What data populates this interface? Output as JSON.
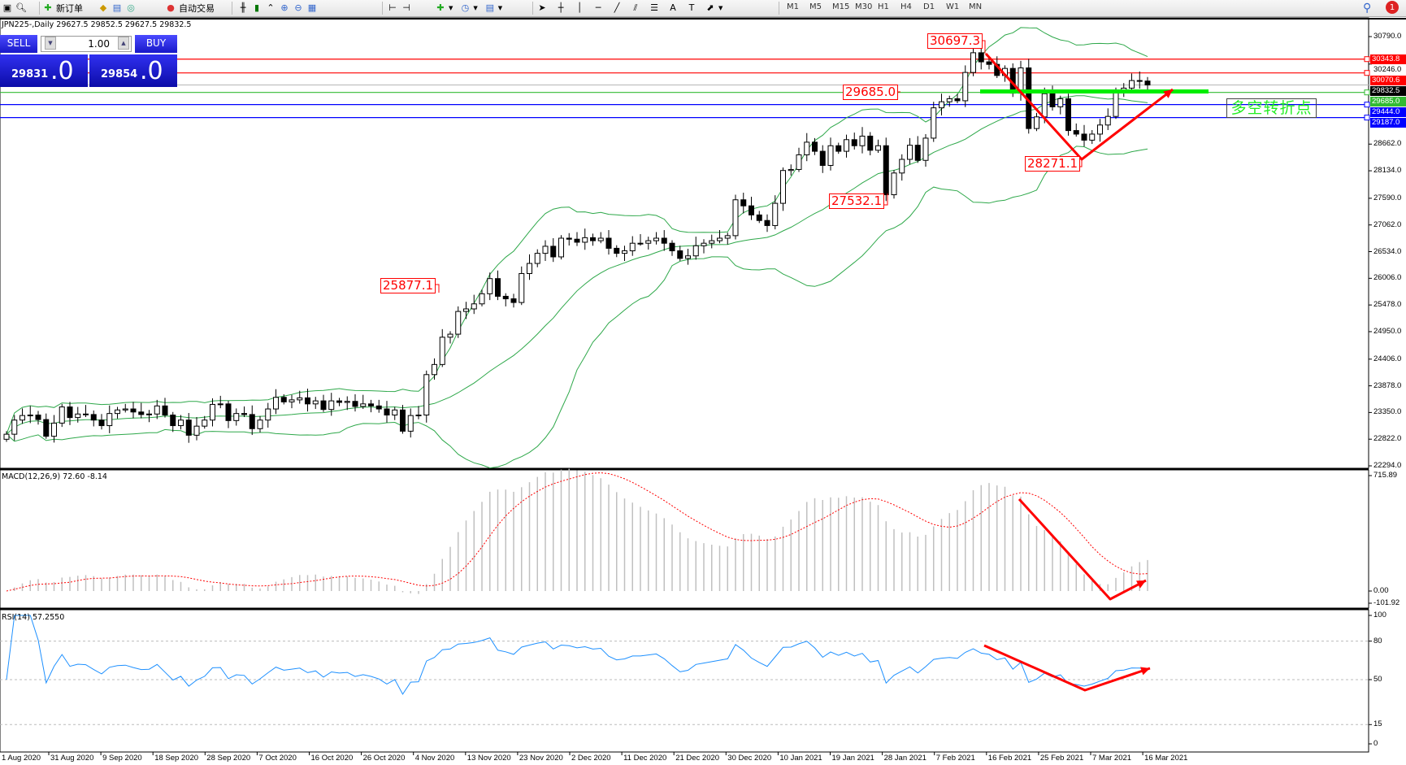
{
  "toolbar": {
    "new_order": "新订单",
    "auto_trading": "自动交易",
    "timeframes": [
      "M1",
      "M5",
      "M15",
      "M30",
      "H1",
      "H4",
      "D1",
      "W1",
      "MN"
    ],
    "notification_count": "1"
  },
  "symbol_info": "JPN225-,Daily  29627.5 29852.5 29627.5 29832.5",
  "trade_panel": {
    "sell_label": "SELL",
    "buy_label": "BUY",
    "lot": "1.00",
    "sell_price_main": "29831",
    "sell_price_big": ".0",
    "buy_price_main": "29854",
    "buy_price_big": ".0"
  },
  "price_axis": [
    "30790.0",
    "30246.0",
    "28662.0",
    "28134.0",
    "27590.0",
    "27062.0",
    "26534.0",
    "26006.0",
    "25478.0",
    "24950.0",
    "24406.0",
    "23878.0",
    "23350.0",
    "22822.0",
    "22294.0"
  ],
  "horizontal_lines": [
    {
      "value": "30343.8",
      "color": "#ff0000"
    },
    {
      "value": "30070.6",
      "color": "#ff0000"
    },
    {
      "value": "29832.5",
      "color": "#000000",
      "line_color": "#c0c0c0"
    },
    {
      "value": "29685.0",
      "color": "#33bb33"
    },
    {
      "value": "29444.0",
      "color": "#0000ff"
    },
    {
      "value": "29187.0",
      "color": "#0000ff"
    }
  ],
  "annotations": {
    "high": "30697.3",
    "support": "29685.0",
    "low": "28271.1",
    "swing_low": "27532.1",
    "breakout": "25877.1",
    "turn_text": "多空转折点"
  },
  "macd": {
    "label": "MACD(12,26,9) 72.60 -8.14",
    "axis": [
      "715.89",
      "0.00",
      "-101.92"
    ]
  },
  "rsi": {
    "label": "RSI(14) 57.2550",
    "axis": [
      "100",
      "80",
      "50",
      "15",
      "0"
    ]
  },
  "dates": [
    "1 Aug 2020",
    "31 Aug 2020",
    "9 Sep 2020",
    "18 Sep 2020",
    "28 Sep 2020",
    "7 Oct 2020",
    "16 Oct 2020",
    "26 Oct 2020",
    "4 Nov 2020",
    "13 Nov 2020",
    "23 Nov 2020",
    "2 Dec 2020",
    "11 Dec 2020",
    "21 Dec 2020",
    "30 Dec 2020",
    "10 Jan 2021",
    "19 Jan 2021",
    "28 Jan 2021",
    "7 Feb 2021",
    "16 Feb 2021",
    "25 Feb 2021",
    "7 Mar 2021",
    "16 Mar 2021"
  ],
  "colors": {
    "bollinger": "#2ea84a",
    "macd_signal": "#ff0000",
    "macd_hist": "#c0c0c0",
    "rsi": "#1e90ff",
    "arrow": "#ff0000",
    "support_bar": "#00ee00"
  },
  "closes": [
    22920,
    23200,
    23290,
    23300,
    23210,
    22880,
    23140,
    23460,
    23250,
    23320,
    23310,
    23200,
    23090,
    23330,
    23400,
    23420,
    23360,
    23310,
    23320,
    23480,
    23300,
    23090,
    23200,
    22900,
    23080,
    23200,
    23510,
    23520,
    23190,
    23330,
    23310,
    23030,
    23200,
    23420,
    23650,
    23560,
    23600,
    23640,
    23520,
    23580,
    23410,
    23580,
    23550,
    23570,
    23470,
    23520,
    23480,
    23420,
    23300,
    23400,
    22980,
    23290,
    23300,
    24100,
    24300,
    24840,
    24900,
    25350,
    25400,
    25500,
    25700,
    26000,
    25650,
    25600,
    25527,
    26100,
    26300,
    26500,
    26640,
    26430,
    26800,
    26780,
    26720,
    26810,
    26750,
    26800,
    26600,
    26500,
    26550,
    26700,
    26700,
    26750,
    26800,
    26700,
    26550,
    26400,
    26450,
    26650,
    26700,
    26750,
    26800,
    26850,
    27560,
    27440,
    27260,
    27150,
    27050,
    27490,
    28140,
    28160,
    28450,
    28700,
    28520,
    28240,
    28630,
    28520,
    28750,
    28630,
    28820,
    28540,
    28630,
    27660,
    28090,
    28360,
    28640,
    28340,
    28780,
    29380,
    29500,
    29560,
    29520,
    30080,
    30470,
    30290,
    30240,
    30020,
    30160,
    29670,
    30170,
    28970,
    29200,
    29660,
    29400,
    29560,
    28930,
    28860,
    28740,
    28860,
    29040,
    29210,
    29720,
    29770,
    29920,
    29910,
    29832.5
  ]
}
